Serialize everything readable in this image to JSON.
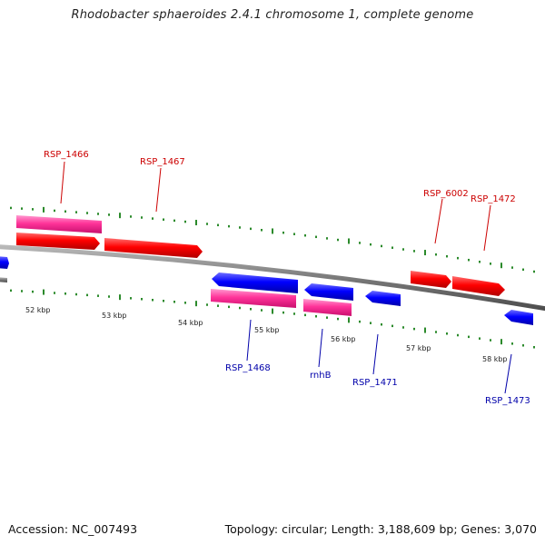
{
  "title": "Rhodobacter sphaeroides 2.4.1 chromosome 1, complete genome",
  "footer": {
    "accession": "Accession: NC_007493",
    "topology": "Topology: circular; Length: 3,188,609 bp; Genes: 3,070"
  },
  "colors": {
    "forward_gene": "#ff0000",
    "reverse_gene": "#0000ff",
    "rna_gene": "#ff3399",
    "backbone": "#888888",
    "tick": "#2b8a2b",
    "label_forward": "#cc0000",
    "label_reverse": "#0000aa"
  },
  "scale_labels": [
    "52 kbp",
    "53 kbp",
    "54 kbp",
    "55 kbp",
    "56 kbp",
    "57 kbp",
    "58 kbp"
  ],
  "genes": [
    {
      "name": "RSP_1466",
      "strand": "+",
      "type": "rna"
    },
    {
      "name": "RSP_1467",
      "strand": "+",
      "type": "cds"
    },
    {
      "name": "RSP_6002",
      "strand": "+",
      "type": "cds"
    },
    {
      "name": "RSP_1472",
      "strand": "+",
      "type": "cds"
    },
    {
      "name": "RSP_1468",
      "strand": "-",
      "type": "cds"
    },
    {
      "name": "rnhB",
      "strand": "-",
      "type": "cds"
    },
    {
      "name": "RSP_1471",
      "strand": "-",
      "type": "cds"
    },
    {
      "name": "RSP_1473",
      "strand": "-",
      "type": "cds"
    }
  ]
}
